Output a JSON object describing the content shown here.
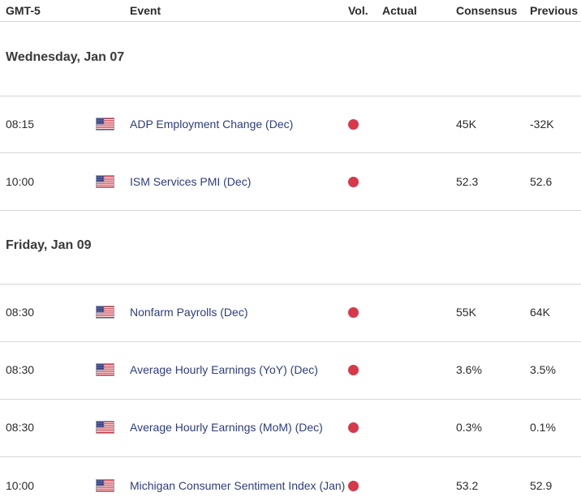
{
  "header": {
    "timezone": "GMT-5",
    "event": "Event",
    "vol": "Vol.",
    "actual": "Actual",
    "consensus": "Consensus",
    "previous": "Previous"
  },
  "colors": {
    "high_impact": "#d7384a",
    "flag_red": "#c8303c",
    "flag_blue": "#2d3a7e",
    "event_text": "#2e3c7e"
  },
  "days": [
    {
      "label": "Wednesday, Jan 07",
      "events": [
        {
          "time": "08:15",
          "country": "us-flag-icon",
          "event": "ADP Employment Change (Dec)",
          "vol": "high",
          "actual": "",
          "consensus": "45K",
          "previous": "-32K"
        },
        {
          "time": "10:00",
          "country": "us-flag-icon",
          "event": "ISM Services PMI (Dec)",
          "vol": "high",
          "actual": "",
          "consensus": "52.3",
          "previous": "52.6"
        }
      ]
    },
    {
      "label": "Friday, Jan 09",
      "events": [
        {
          "time": "08:30",
          "country": "us-flag-icon",
          "event": "Nonfarm Payrolls (Dec)",
          "vol": "high",
          "actual": "",
          "consensus": "55K",
          "previous": "64K"
        },
        {
          "time": "08:30",
          "country": "us-flag-icon",
          "event": "Average Hourly Earnings (YoY) (Dec)",
          "vol": "high",
          "actual": "",
          "consensus": "3.6%",
          "previous": "3.5%"
        },
        {
          "time": "08:30",
          "country": "us-flag-icon",
          "event": "Average Hourly Earnings (MoM) (Dec)",
          "vol": "high",
          "actual": "",
          "consensus": "0.3%",
          "previous": "0.1%"
        },
        {
          "time": "10:00",
          "country": "us-flag-icon",
          "event": "Michigan Consumer Sentiment Index (Jan)",
          "vol": "high",
          "actual": "",
          "consensus": "53.2",
          "previous": "52.9"
        }
      ]
    }
  ]
}
